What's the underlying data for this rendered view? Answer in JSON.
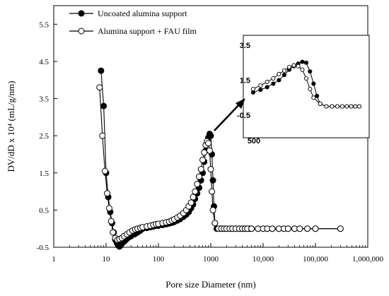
{
  "chart_data": {
    "type": "scatter",
    "xlabel": "Pore size Diameter (nm)",
    "ylabel": "DV/dD x 10⁴ (mL/g/nm)",
    "xscale": "log",
    "xlim": [
      1,
      1000000
    ],
    "ylim": [
      -0.5,
      6
    ],
    "x_ticks": [
      1,
      10,
      100,
      1000,
      10000,
      100000,
      1000000
    ],
    "x_tick_labels": [
      "1",
      "10",
      "100",
      "1000",
      "10,000",
      "100,000",
      "1,000,000"
    ],
    "y_ticks": [
      -0.5,
      0.5,
      1.5,
      2.5,
      3.5,
      4.5,
      5.5
    ],
    "y_tick_labels": [
      "-0.5",
      "0.5",
      "1.5",
      "2.5",
      "3.5",
      "4.5",
      "5.5"
    ],
    "grid": false,
    "legend_position": "top-left",
    "series": [
      {
        "name": "Uncoated alumina support",
        "marker": "filled-circle",
        "color": "#000000",
        "x": [
          8,
          9,
          10,
          11,
          12,
          13,
          14,
          15,
          16,
          17,
          18,
          19,
          20,
          22,
          24,
          26,
          28,
          30,
          35,
          40,
          45,
          50,
          60,
          70,
          80,
          90,
          100,
          120,
          140,
          160,
          180,
          200,
          230,
          260,
          300,
          340,
          380,
          420,
          460,
          500,
          550,
          600,
          650,
          700,
          750,
          800,
          850,
          900,
          950,
          1000,
          1050,
          1100,
          1150,
          1200,
          1300,
          1500,
          1700,
          2000,
          2300,
          2600,
          3000,
          3500,
          4000,
          4500,
          5000,
          5500,
          6000,
          8000,
          10000,
          12000,
          15000,
          20000,
          25000,
          30000,
          40000,
          50000,
          70000,
          100000,
          300000
        ],
        "y": [
          4.25,
          3.3,
          1.5,
          0.85,
          0.45,
          0.15,
          -0.1,
          -0.3,
          -0.38,
          -0.45,
          -0.48,
          -0.45,
          -0.4,
          -0.35,
          -0.3,
          -0.25,
          -0.22,
          -0.2,
          -0.15,
          -0.1,
          -0.05,
          0.0,
          0.02,
          0.04,
          0.06,
          0.08,
          0.08,
          0.1,
          0.12,
          0.14,
          0.16,
          0.18,
          0.22,
          0.26,
          0.32,
          0.38,
          0.45,
          0.55,
          0.65,
          0.8,
          0.95,
          1.1,
          1.3,
          1.5,
          1.8,
          2.1,
          2.3,
          2.45,
          2.55,
          2.5,
          2.0,
          1.3,
          0.6,
          0.15,
          0.0,
          0.0,
          0.0,
          0.0,
          0.0,
          0.0,
          0.0,
          0.0,
          0.0,
          0.0,
          0.0,
          0.0,
          0.0,
          0.0,
          0.0,
          0.0,
          0.0,
          0.0,
          0.0,
          0.0,
          0.0,
          0.0,
          0.0,
          0.0,
          0.0
        ]
      },
      {
        "name": "Alumina support + FAU film",
        "marker": "open-circle",
        "color": "#000000",
        "x": [
          7.5,
          8.5,
          9.5,
          10.5,
          11.5,
          12.5,
          13.5,
          15,
          16.5,
          18,
          20,
          22,
          25,
          28,
          32,
          36,
          40,
          45,
          50,
          60,
          70,
          80,
          90,
          100,
          120,
          140,
          160,
          180,
          200,
          230,
          260,
          300,
          340,
          380,
          420,
          460,
          500,
          550,
          600,
          650,
          700,
          750,
          800,
          850,
          900,
          950,
          1000,
          1050,
          1100,
          1200,
          1400,
          1600,
          1800,
          2000,
          2300,
          2600,
          3000,
          3500,
          4000,
          4500,
          5000,
          6000,
          8000,
          10000,
          12000,
          15000,
          20000,
          25000,
          30000,
          40000,
          50000,
          70000,
          100000,
          300000
        ],
        "y": [
          3.8,
          2.5,
          1.55,
          0.95,
          0.55,
          0.2,
          -0.1,
          -0.25,
          -0.3,
          -0.28,
          -0.25,
          -0.2,
          -0.15,
          -0.1,
          -0.05,
          -0.02,
          0.0,
          0.02,
          0.04,
          0.06,
          0.08,
          0.1,
          0.12,
          0.13,
          0.15,
          0.17,
          0.19,
          0.22,
          0.25,
          0.3,
          0.35,
          0.42,
          0.5,
          0.6,
          0.7,
          0.85,
          1.0,
          1.2,
          1.4,
          1.6,
          1.85,
          2.05,
          2.25,
          2.35,
          2.3,
          2.1,
          1.6,
          1.0,
          0.5,
          0.15,
          0.0,
          0.0,
          0.0,
          0.0,
          0.0,
          0.0,
          0.0,
          0.0,
          0.0,
          0.0,
          0.0,
          0.0,
          0.0,
          0.0,
          0.0,
          0.0,
          0.0,
          0.0,
          0.0,
          0.0,
          0.0,
          0.0,
          0.0,
          0.0
        ]
      }
    ],
    "inset": {
      "xlim": [
        500,
        2000
      ],
      "ylim": [
        -0.5,
        3.5
      ],
      "x_tick_labels": [
        "500"
      ],
      "y_ticks": [
        -0.5,
        1.5,
        3.5
      ],
      "y_tick_labels": [
        "-0.5",
        "1.5",
        "3.5"
      ],
      "series": [
        {
          "name": "Uncoated alumina support",
          "marker": "filled-circle",
          "x": [
            500,
            550,
            600,
            650,
            700,
            750,
            800,
            850,
            900,
            950,
            1000,
            1050,
            1100,
            1150,
            1200,
            1300,
            1400,
            1500,
            1600,
            1700,
            1800,
            1900,
            2000
          ],
          "y": [
            0.8,
            0.95,
            1.1,
            1.3,
            1.5,
            1.8,
            2.1,
            2.3,
            2.45,
            2.55,
            2.5,
            2.0,
            1.3,
            0.6,
            0.15,
            0.0,
            0.0,
            0.0,
            0.0,
            0.0,
            0.0,
            0.0,
            0.0
          ]
        },
        {
          "name": "Alumina support + FAU film",
          "marker": "open-circle",
          "x": [
            500,
            550,
            600,
            650,
            700,
            750,
            800,
            850,
            900,
            950,
            1000,
            1050,
            1100,
            1200,
            1300,
            1400,
            1500,
            1600,
            1700,
            1800,
            1900,
            2000
          ],
          "y": [
            1.0,
            1.2,
            1.4,
            1.6,
            1.85,
            2.05,
            2.25,
            2.35,
            2.3,
            2.1,
            1.6,
            1.0,
            0.5,
            0.15,
            0.0,
            0.0,
            0.0,
            0.0,
            0.0,
            0.0,
            0.0,
            0.0
          ]
        }
      ]
    }
  }
}
